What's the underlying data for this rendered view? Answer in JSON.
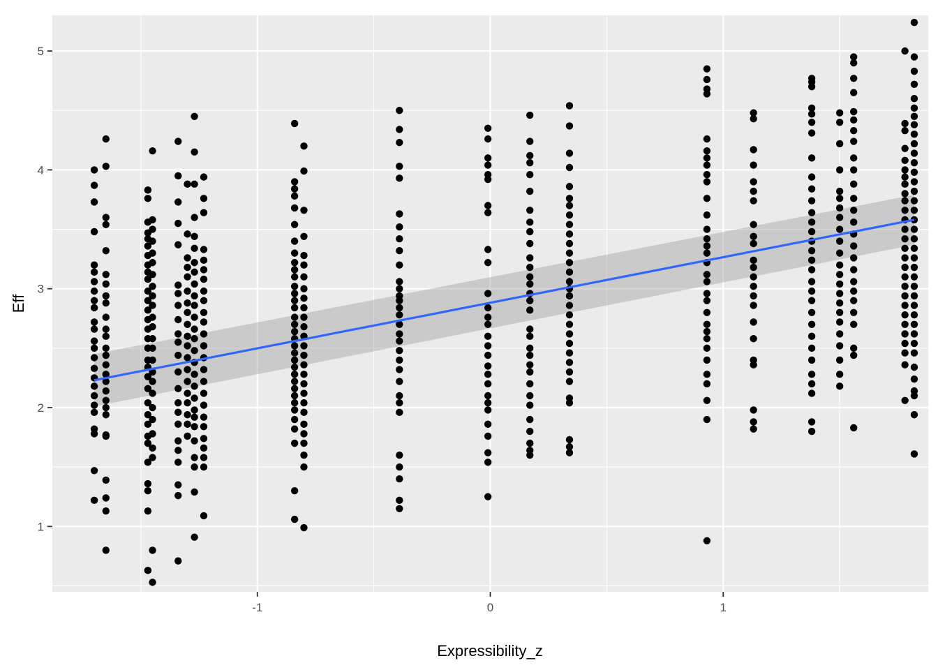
{
  "chart_data": {
    "type": "scatter",
    "title": "",
    "xlabel": "Expressibility_z",
    "ylabel": "Eff",
    "xlim": [
      -1.88,
      1.88
    ],
    "ylim": [
      0.45,
      5.3
    ],
    "x_ticks": [
      -1,
      0,
      1
    ],
    "y_ticks": [
      1,
      2,
      3,
      4,
      5
    ],
    "grid": true,
    "legend": "none",
    "colors": {
      "panel_bg": "#ebebeb",
      "grid": "#ffffff",
      "point": "#000000",
      "fit_line": "#3366ff",
      "ci_band": "#999999"
    },
    "series": [
      {
        "values": [
          {
            "x": -1.7,
            "y": [
              4.0,
              3.87,
              3.73,
              3.48,
              3.2,
              3.14,
              3.06,
              2.98,
              2.9,
              2.84,
              2.72,
              2.66,
              2.56,
              2.5,
              2.42,
              2.33,
              2.25,
              2.18,
              2.1,
              2.02,
              1.96,
              1.82,
              1.78,
              1.47,
              1.22
            ]
          },
          {
            "x": -1.65,
            "y": [
              4.26,
              4.03,
              3.6,
              3.54,
              3.32,
              3.12,
              3.04,
              2.94,
              2.88,
              2.76,
              2.66,
              2.6,
              2.5,
              2.44,
              2.36,
              2.28,
              2.22,
              2.14,
              2.06,
              2.0,
              1.94,
              1.77,
              1.76,
              1.39,
              1.24,
              1.13,
              0.8
            ]
          },
          {
            "x": -1.47,
            "y": [
              3.83,
              3.76,
              3.56,
              3.47,
              3.42,
              3.36,
              3.28,
              3.2,
              3.14,
              3.08,
              2.98,
              2.9,
              2.82,
              2.74,
              2.66,
              2.58,
              2.5,
              2.4,
              2.34,
              2.26,
              2.16,
              2.04,
              1.94,
              1.86,
              1.76,
              1.7,
              1.54,
              1.36,
              1.3,
              1.13,
              0.63
            ]
          },
          {
            "x": -1.45,
            "y": [
              4.16,
              3.58,
              3.5,
              3.4,
              3.3,
              3.22,
              3.12,
              3.02,
              2.94,
              2.86,
              2.76,
              2.68,
              2.58,
              2.5,
              2.4,
              2.3,
              2.22,
              2.12,
              2.0,
              1.9,
              1.78,
              1.66,
              1.58,
              0.8,
              0.53
            ]
          },
          {
            "x": -1.34,
            "y": [
              4.24,
              3.95,
              3.73,
              3.55,
              3.37,
              3.03,
              2.96,
              2.86,
              2.74,
              2.62,
              2.55,
              2.44,
              2.3,
              2.16,
              2.04,
              1.96,
              1.86,
              1.72,
              1.64,
              1.54,
              1.35,
              1.26,
              0.71
            ]
          },
          {
            "x": -1.3,
            "y": [
              3.88,
              3.46,
              3.26,
              3.18,
              3.1,
              2.98,
              2.88,
              2.8,
              2.7,
              2.6,
              2.52,
              2.42,
              2.32,
              2.22,
              2.12,
              2.04,
              1.94,
              1.86,
              1.76
            ]
          },
          {
            "x": -1.27,
            "y": [
              4.45,
              4.15,
              3.88,
              3.6,
              3.44,
              3.34,
              3.22,
              3.14,
              3.04,
              2.94,
              2.86,
              2.76,
              2.66,
              2.58,
              2.48,
              2.38,
              2.28,
              2.18,
              2.08,
              1.98,
              1.92,
              1.84,
              1.72,
              1.58,
              1.5,
              1.29,
              0.91
            ]
          },
          {
            "x": -1.23,
            "y": [
              3.94,
              3.76,
              3.64,
              3.33,
              3.24,
              3.16,
              3.08,
              2.98,
              2.9,
              2.8,
              2.72,
              2.62,
              2.52,
              2.42,
              2.32,
              2.22,
              2.12,
              2.02,
              1.92,
              1.84,
              1.74,
              1.66,
              1.58,
              1.5,
              1.09
            ]
          },
          {
            "x": -0.84,
            "y": [
              4.39,
              3.9,
              3.84,
              3.78,
              3.68,
              3.54,
              3.4,
              3.3,
              3.22,
              3.16,
              3.1,
              3.02,
              2.96,
              2.9,
              2.84,
              2.76,
              2.7,
              2.64,
              2.58,
              2.52,
              2.46,
              2.4,
              2.34,
              2.28,
              2.22,
              2.16,
              2.1,
              2.04,
              1.98,
              1.9,
              1.82,
              1.7,
              1.3,
              1.06
            ]
          },
          {
            "x": -0.8,
            "y": [
              4.2,
              3.99,
              3.66,
              3.44,
              3.28,
              3.2,
              3.1,
              3.0,
              2.92,
              2.84,
              2.76,
              2.68,
              2.6,
              2.52,
              2.44,
              2.36,
              2.28,
              2.2,
              2.12,
              2.04,
              1.96,
              1.86,
              1.78,
              1.7,
              1.6,
              1.5,
              0.99
            ]
          },
          {
            "x": -0.39,
            "y": [
              4.5,
              4.34,
              4.23,
              4.03,
              3.93,
              3.63,
              3.52,
              3.42,
              3.32,
              3.2,
              3.06,
              3.0,
              2.94,
              2.9,
              2.84,
              2.78,
              2.7,
              2.62,
              2.56,
              2.48,
              2.4,
              2.32,
              2.22,
              2.1,
              2.04,
              1.96,
              1.6,
              1.5,
              1.4,
              1.22,
              1.15
            ]
          },
          {
            "x": -0.01,
            "y": [
              4.35,
              4.26,
              4.1,
              4.04,
              3.96,
              3.92,
              3.7,
              3.64,
              3.33,
              3.22,
              2.96,
              2.84,
              2.76,
              2.7,
              2.6,
              2.52,
              2.44,
              2.35,
              2.28,
              2.2,
              2.1,
              2.04,
              1.98,
              1.86,
              1.76,
              1.62,
              1.54,
              1.25
            ]
          },
          {
            "x": 0.17,
            "y": [
              4.46,
              4.24,
              4.12,
              4.06,
              3.96,
              3.82,
              3.66,
              3.56,
              3.48,
              3.38,
              3.26,
              3.18,
              3.1,
              3.04,
              2.96,
              2.9,
              2.82,
              2.66,
              2.6,
              2.5,
              2.44,
              2.36,
              2.3,
              2.2,
              2.1,
              2.02,
              1.9,
              1.8,
              1.7,
              1.64,
              1.6
            ]
          },
          {
            "x": 0.34,
            "y": [
              4.54,
              4.37,
              4.14,
              4.02,
              3.86,
              3.76,
              3.7,
              3.62,
              3.54,
              3.46,
              3.38,
              3.3,
              3.22,
              3.14,
              3.06,
              3.0,
              2.94,
              2.86,
              2.78,
              2.7,
              2.62,
              2.54,
              2.46,
              2.38,
              2.3,
              2.22,
              2.08,
              2.04,
              1.73,
              1.67,
              1.62
            ]
          },
          {
            "x": 0.93,
            "y": [
              4.85,
              4.76,
              4.68,
              4.64,
              4.26,
              4.16,
              4.1,
              4.04,
              3.96,
              3.9,
              3.76,
              3.62,
              3.5,
              3.42,
              3.36,
              3.3,
              3.22,
              3.12,
              3.06,
              2.96,
              2.9,
              2.8,
              2.7,
              2.64,
              2.58,
              2.5,
              2.4,
              2.28,
              2.2,
              2.06,
              1.9,
              0.88
            ]
          },
          {
            "x": 1.13,
            "y": [
              4.48,
              4.43,
              4.17,
              4.04,
              3.9,
              3.82,
              3.74,
              3.54,
              3.44,
              3.38,
              3.24,
              3.18,
              3.1,
              3.02,
              2.94,
              2.86,
              2.72,
              2.58,
              2.4,
              2.36,
              1.98,
              1.88,
              1.82
            ]
          },
          {
            "x": 1.38,
            "y": [
              4.77,
              4.74,
              4.7,
              4.52,
              4.47,
              4.4,
              4.31,
              4.1,
              3.94,
              3.84,
              3.74,
              3.64,
              3.56,
              3.48,
              3.4,
              3.32,
              3.24,
              3.16,
              3.06,
              2.98,
              2.9,
              2.8,
              2.7,
              2.6,
              2.5,
              2.4,
              2.28,
              2.2,
              2.12,
              1.88,
              1.8
            ]
          },
          {
            "x": 1.5,
            "y": [
              4.48,
              4.4,
              4.22,
              4.0,
              3.82,
              3.76,
              3.68,
              3.6,
              3.5,
              3.4,
              3.3,
              3.2,
              3.12,
              3.04,
              2.96,
              2.88,
              2.8,
              2.72,
              2.62,
              2.52,
              2.4,
              2.28,
              2.18
            ]
          },
          {
            "x": 1.56,
            "y": [
              4.95,
              4.9,
              4.77,
              4.65,
              4.49,
              4.42,
              4.33,
              4.24,
              4.1,
              4.0,
              3.88,
              3.76,
              3.66,
              3.56,
              3.46,
              3.36,
              3.26,
              3.16,
              3.06,
              2.98,
              2.9,
              2.8,
              2.7,
              2.5,
              2.44,
              1.83
            ]
          },
          {
            "x": 1.78,
            "y": [
              5.0,
              4.39,
              4.33,
              4.18,
              4.08,
              4.0,
              3.94,
              3.88,
              3.8,
              3.74,
              3.66,
              3.58,
              3.5,
              3.42,
              3.34,
              3.26,
              3.18,
              3.1,
              3.02,
              2.94,
              2.86,
              2.78,
              2.7,
              2.62,
              2.54,
              2.46,
              2.36,
              2.06
            ]
          },
          {
            "x": 1.82,
            "y": [
              5.24,
              4.95,
              4.83,
              4.72,
              4.6,
              4.52,
              4.45,
              4.38,
              4.3,
              4.22,
              4.14,
              4.06,
              3.98,
              3.9,
              3.82,
              3.74,
              3.66,
              3.58,
              3.5,
              3.42,
              3.34,
              3.26,
              3.18,
              3.1,
              3.02,
              2.94,
              2.86,
              2.78,
              2.7,
              2.62,
              2.54,
              2.46,
              2.34,
              2.24,
              2.14,
              2.1,
              1.94,
              1.61
            ]
          }
        ]
      }
    ],
    "fit": {
      "method": "lm",
      "x": [
        -1.7,
        1.82
      ],
      "y": [
        2.23,
        3.58
      ],
      "ci_lower": [
        2.01,
        3.37
      ],
      "ci_upper": [
        2.45,
        3.79
      ]
    }
  }
}
